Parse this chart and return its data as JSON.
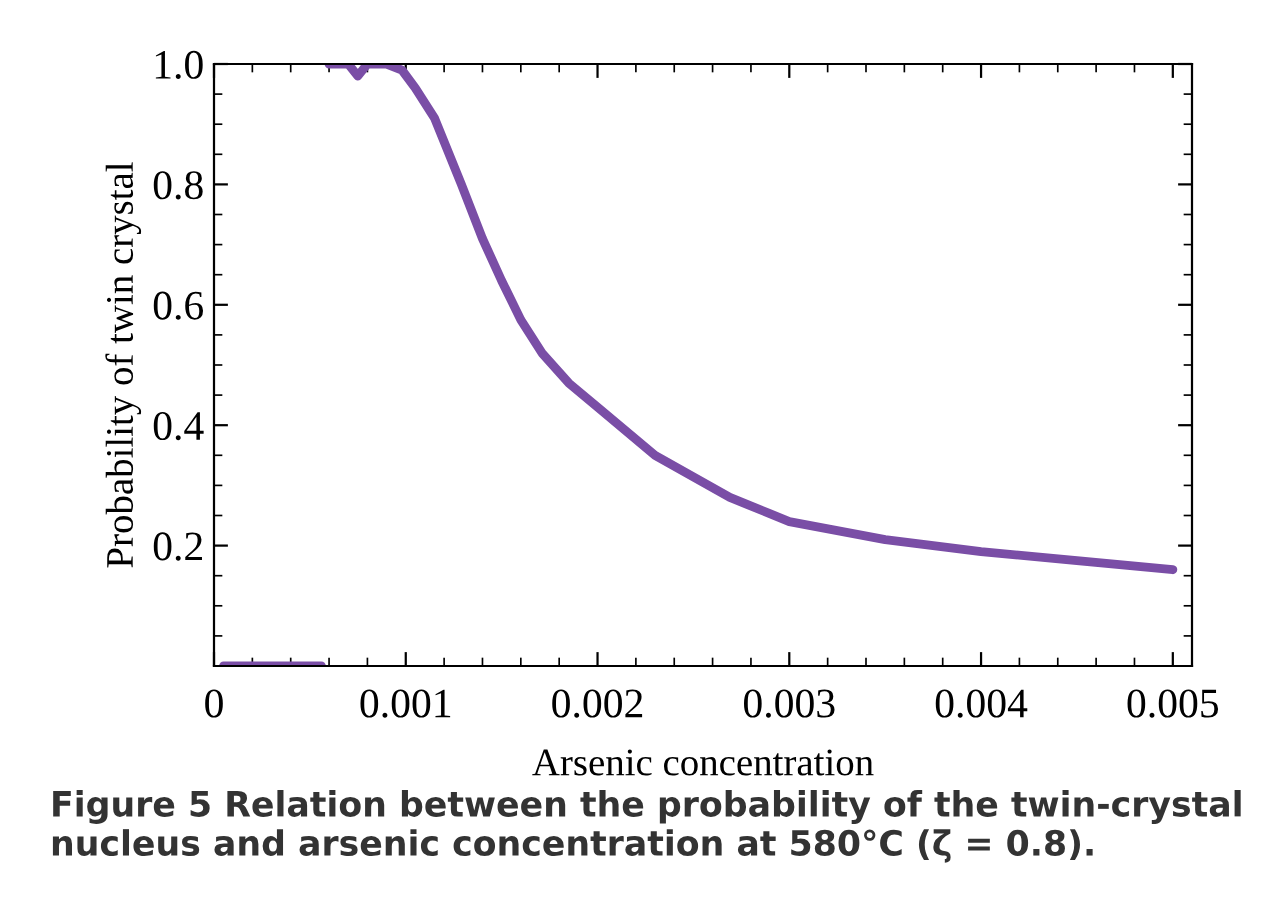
{
  "chart_data": {
    "type": "line",
    "xlabel": "Arsenic concentration",
    "ylabel": "Probability of twin crystal",
    "annotations": [
      "Figure 5 Relation between the probability of the twin-crystal nucleus and arsenic concentration at 580°C (ζ = 0.8)."
    ],
    "series": [
      {
        "color": "#7a4ea6",
        "x": [
          5e-05,
          0.0002,
          0.0004,
          0.00056
        ],
        "values": [
          0.0,
          0.0,
          0.0,
          0.0
        ]
      },
      {
        "color": "#7a4ea6",
        "x": [
          0.0006,
          0.0007,
          0.00075,
          0.0008,
          0.0009,
          0.00098,
          0.00105,
          0.00115,
          0.00129,
          0.0014,
          0.0015,
          0.0016,
          0.00171,
          0.00185,
          0.002,
          0.0023,
          0.00269,
          0.003,
          0.0035,
          0.004,
          0.0045,
          0.005
        ],
        "values": [
          1.0,
          1.0,
          0.98,
          1.0,
          1.0,
          0.99,
          0.96,
          0.91,
          0.8,
          0.71,
          0.64,
          0.575,
          0.52,
          0.47,
          0.43,
          0.35,
          0.28,
          0.24,
          0.21,
          0.19,
          0.175,
          0.16
        ]
      }
    ],
    "xlim": [
      0,
      0.0051
    ],
    "ylim": [
      0,
      1.0
    ],
    "xticks": [
      0,
      0.001,
      0.002,
      0.003,
      0.004,
      0.005
    ],
    "yticks": [
      0.2,
      0.4,
      0.6,
      0.8,
      {
        "value": 1,
        "label": "1.0"
      }
    ],
    "grid": false,
    "legend": false,
    "marker": "none",
    "line_style": "solid"
  }
}
